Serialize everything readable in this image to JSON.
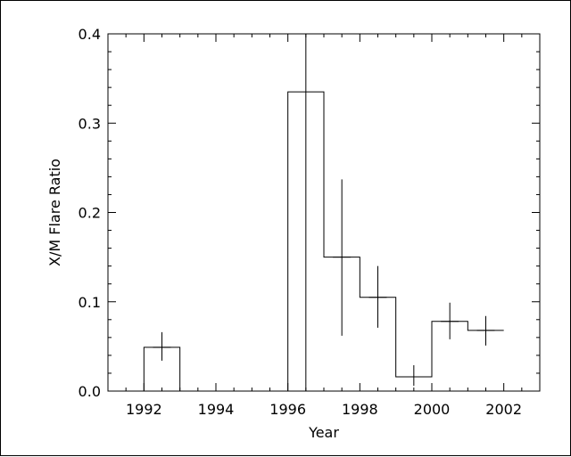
{
  "chart_data": {
    "type": "step-histogram",
    "xlabel": "Year",
    "ylabel": "X/M Flare Ratio",
    "xlim": [
      1991,
      2003
    ],
    "ylim": [
      0.0,
      0.4
    ],
    "x_ticks": [
      1992,
      1994,
      1996,
      1998,
      2000,
      2002
    ],
    "x_tick_labels": [
      "1992",
      "1994",
      "1996",
      "1998",
      "2000",
      "2002"
    ],
    "y_ticks": [
      0.0,
      0.1,
      0.2,
      0.3,
      0.4
    ],
    "y_tick_labels": [
      "0.0",
      "0.1",
      "0.2",
      "0.3",
      "0.4"
    ],
    "bins": [
      {
        "x0": 1992,
        "x1": 1993,
        "x_center": 1992.5,
        "value": 0.049,
        "err_low": 0.034,
        "err_high": 0.066
      },
      {
        "x0": 1993,
        "x1": 1996,
        "x_center": 1994.5,
        "value": 0.0,
        "err_low": null,
        "err_high": null
      },
      {
        "x0": 1996,
        "x1": 1997,
        "x_center": 1996.5,
        "value": 0.335,
        "err_low": 0.0,
        "err_high": 0.4
      },
      {
        "x0": 1997,
        "x1": 1998,
        "x_center": 1997.5,
        "value": 0.15,
        "err_low": 0.062,
        "err_high": 0.237
      },
      {
        "x0": 1998,
        "x1": 1999,
        "x_center": 1998.5,
        "value": 0.105,
        "err_low": 0.071,
        "err_high": 0.14
      },
      {
        "x0": 1999,
        "x1": 2000,
        "x_center": 1999.5,
        "value": 0.016,
        "err_low": 0.006,
        "err_high": 0.029
      },
      {
        "x0": 2000,
        "x1": 2001,
        "x_center": 2000.5,
        "value": 0.078,
        "err_low": 0.058,
        "err_high": 0.099
      },
      {
        "x0": 2001,
        "x1": 2002,
        "x_center": 2001.5,
        "value": 0.068,
        "err_low": 0.051,
        "err_high": 0.084
      }
    ],
    "grid": false,
    "colors": {
      "line": "#000000",
      "background": "#ffffff"
    }
  }
}
